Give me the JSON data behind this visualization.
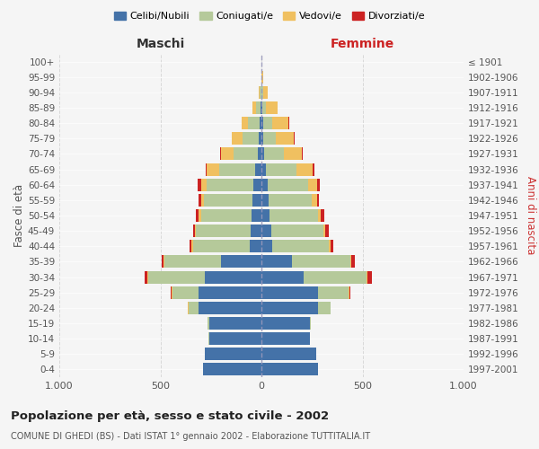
{
  "age_groups": [
    "0-4",
    "5-9",
    "10-14",
    "15-19",
    "20-24",
    "25-29",
    "30-34",
    "35-39",
    "40-44",
    "45-49",
    "50-54",
    "55-59",
    "60-64",
    "65-69",
    "70-74",
    "75-79",
    "80-84",
    "85-89",
    "90-94",
    "95-99",
    "100+"
  ],
  "birth_years": [
    "1997-2001",
    "1992-1996",
    "1987-1991",
    "1982-1986",
    "1977-1981",
    "1972-1976",
    "1967-1971",
    "1962-1966",
    "1957-1961",
    "1952-1956",
    "1947-1951",
    "1942-1946",
    "1937-1941",
    "1932-1936",
    "1927-1931",
    "1922-1926",
    "1917-1921",
    "1912-1916",
    "1907-1911",
    "1902-1906",
    "≤ 1901"
  ],
  "colors": {
    "celibi": "#4472a8",
    "coniugati": "#b5c99a",
    "vedovi": "#f0c060",
    "divorziati": "#cc2222"
  },
  "maschi": {
    "celibi": [
      290,
      280,
      260,
      260,
      310,
      310,
      280,
      200,
      60,
      55,
      50,
      45,
      40,
      30,
      20,
      15,
      10,
      5,
      2,
      2,
      2
    ],
    "coniugati": [
      0,
      0,
      2,
      5,
      50,
      130,
      280,
      280,
      280,
      270,
      250,
      240,
      230,
      180,
      120,
      80,
      55,
      20,
      5,
      0,
      0
    ],
    "vedovi": [
      0,
      0,
      0,
      0,
      5,
      5,
      5,
      5,
      5,
      5,
      10,
      15,
      30,
      60,
      60,
      50,
      35,
      20,
      5,
      0,
      0
    ],
    "divorziati": [
      0,
      0,
      0,
      0,
      0,
      5,
      15,
      10,
      10,
      10,
      15,
      10,
      15,
      5,
      5,
      0,
      0,
      0,
      0,
      0,
      0
    ]
  },
  "femmine": {
    "celibi": [
      280,
      270,
      240,
      240,
      280,
      280,
      210,
      150,
      55,
      50,
      40,
      35,
      30,
      20,
      15,
      10,
      8,
      5,
      2,
      2,
      2
    ],
    "coniugati": [
      0,
      0,
      2,
      5,
      60,
      150,
      310,
      290,
      280,
      255,
      240,
      215,
      200,
      155,
      95,
      60,
      45,
      15,
      5,
      0,
      0
    ],
    "vedovi": [
      0,
      0,
      0,
      0,
      0,
      5,
      5,
      5,
      5,
      10,
      15,
      25,
      45,
      80,
      90,
      90,
      80,
      60,
      25,
      5,
      0
    ],
    "divorziati": [
      0,
      0,
      0,
      0,
      0,
      5,
      20,
      15,
      15,
      20,
      15,
      10,
      15,
      5,
      5,
      5,
      5,
      0,
      0,
      0,
      0
    ]
  },
  "xlim": 1000,
  "title": "Popolazione per età, sesso e stato civile - 2002",
  "subtitle": "COMUNE DI GHEDI (BS) - Dati ISTAT 1° gennaio 2002 - Elaborazione TUTTITALIA.IT",
  "xlabel_left": "Maschi",
  "xlabel_right": "Femmine",
  "ylabel_left": "Fasce di età",
  "ylabel_right": "Anni di nascita",
  "legend_labels": [
    "Celibi/Nubili",
    "Coniugati/e",
    "Vedovi/e",
    "Divorziati/e"
  ],
  "bg_color": "#f5f5f5",
  "grid_color": "#cccccc"
}
